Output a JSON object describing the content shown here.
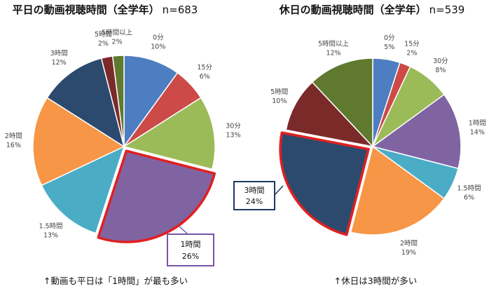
{
  "charts_meta": [
    {
      "title": "平日の動画視聴時間（全学年）",
      "n_label": "n=683",
      "caption": "↑動画も平日は「1時間」が最も多い"
    },
    {
      "title": "休日の動画視聴時間（全学年）",
      "n_label": "n=539",
      "caption": "↑休日は3時間が多い"
    }
  ],
  "colors": {
    "0分": "#4e7ec2",
    "15分": "#cc4a48",
    "30分": "#9bbb59",
    "1時間": "#8064a2",
    "1.5時間": "#4bacc6",
    "2時間": "#f79646",
    "3時間": "#2c4a6e",
    "5時間": "#7b2a2a",
    "5時間以上": "#5f7a2e",
    "highlight": "#e02020",
    "callout_purple": "#7a55a8",
    "callout_navy": "#1f3864"
  },
  "chart_data": [
    {
      "type": "pie",
      "title": "平日の動画視聴時間（全学年）",
      "categories": [
        "0分",
        "15分",
        "30分",
        "1時間",
        "1.5時間",
        "2時間",
        "3時間",
        "5時間",
        "5時間以上"
      ],
      "values": [
        10,
        6,
        13,
        26,
        13,
        16,
        12,
        2,
        2
      ],
      "value_labels": [
        "10%",
        "6%",
        "13%",
        "26%",
        "13%",
        "16%",
        "12%",
        "2%",
        "2%"
      ],
      "highlight": "1時間",
      "callout": {
        "name": "1時間",
        "value": "26%"
      }
    },
    {
      "type": "pie",
      "title": "休日の動画視聴時間（全学年）",
      "categories": [
        "0分",
        "15分",
        "30分",
        "1時間",
        "1.5時間",
        "2時間",
        "3時間",
        "5時間",
        "5時間以上"
      ],
      "values": [
        5,
        2,
        8,
        14,
        6,
        19,
        24,
        10,
        12
      ],
      "value_labels": [
        "5%",
        "2%",
        "8%",
        "14%",
        "6%",
        "19%",
        "24%",
        "10%",
        "12%"
      ],
      "highlight": "3時間",
      "callout": {
        "name": "3時間",
        "value": "24%"
      }
    }
  ]
}
